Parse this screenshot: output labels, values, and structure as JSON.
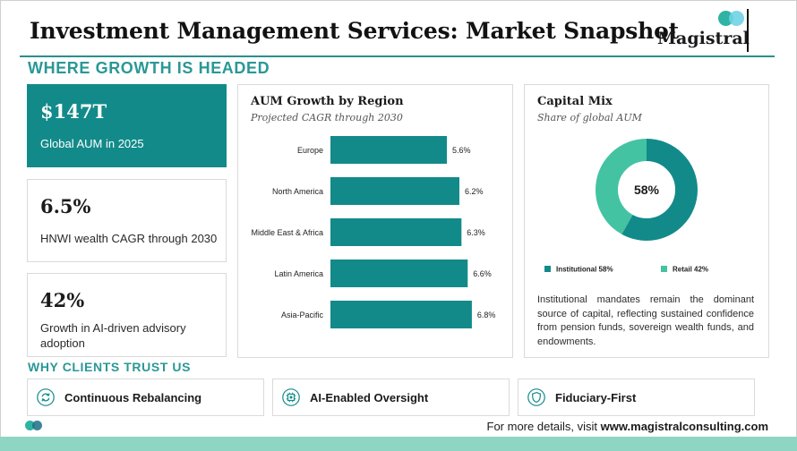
{
  "header": {
    "title": "Investment Management Services: Market Snapshot",
    "logo_text": "Magistral"
  },
  "section_growth": {
    "heading": "WHERE GROWTH IS HEADED"
  },
  "kpis": [
    {
      "value": "$147T",
      "label": "Global AUM in 2025"
    },
    {
      "value": "6.5%",
      "label": "HNWI wealth CAGR through 2030"
    },
    {
      "value": "42%",
      "label": "Growth in AI-driven advisory adoption"
    }
  ],
  "aum_panel": {
    "title": "AUM Growth by Region",
    "subtitle": "Projected CAGR through 2030"
  },
  "capital_panel": {
    "title": "Capital Mix",
    "subtitle": "Share of global AUM",
    "center_label": "58%",
    "description": "Institutional mandates remain the dominant source of capital, reflecting sustained confidence from pension funds, sovereign wealth funds, and endowments."
  },
  "chart_data": [
    {
      "type": "bar",
      "orientation": "horizontal",
      "title": "AUM Growth by Region",
      "subtitle": "Projected CAGR through 2030",
      "categories": [
        "Europe",
        "North America",
        "Middle East & Africa",
        "Latin America",
        "Asia-Pacific"
      ],
      "values": [
        5.6,
        6.2,
        6.3,
        6.6,
        6.8
      ],
      "value_labels": [
        "5.6%",
        "6.2%",
        "6.3%",
        "6.6%",
        "6.8%"
      ],
      "color": "#138a8a"
    },
    {
      "type": "pie",
      "donut": true,
      "title": "Capital Mix",
      "subtitle": "Share of global AUM",
      "slices": [
        {
          "name": "Institutional",
          "value": 58,
          "legend": "58%",
          "color": "#138a8a"
        },
        {
          "name": "Retail",
          "value": 42,
          "legend": "42%",
          "color": "#43c3a2"
        }
      ],
      "legend_position": "bottom"
    }
  ],
  "section_trust": {
    "heading": "WHY CLIENTS TRUST US"
  },
  "trust_items": [
    {
      "label": "Continuous Rebalancing",
      "icon": "refresh-icon"
    },
    {
      "label": "AI-Enabled Oversight",
      "icon": "chip-icon"
    },
    {
      "label": "Fiduciary-First",
      "icon": "shield-icon"
    }
  ],
  "footer": {
    "prefix": "For more details, visit ",
    "link": "www.magistralconsulting.com"
  },
  "colors": {
    "accent": "#138a8a",
    "heading": "#2a9896",
    "retail": "#43c3a2",
    "band": "#8ed6c3"
  }
}
